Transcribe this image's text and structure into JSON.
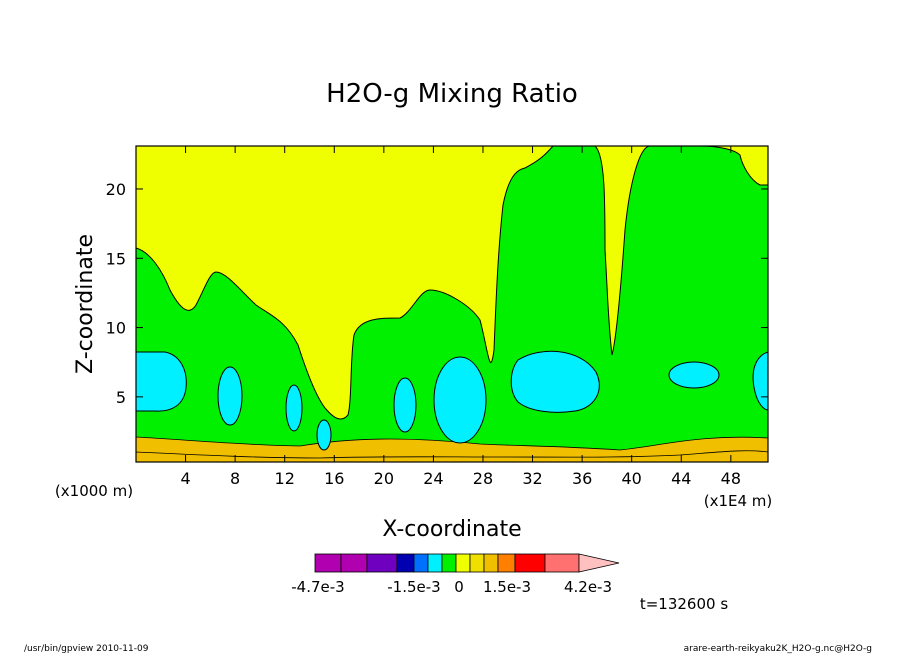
{
  "chart_data": {
    "type": "heatmap",
    "title": "H2O-g Mixing Ratio",
    "xlabel": "X-coordinate",
    "ylabel": "Z-coordinate",
    "x_scale_label": "(x1E4 m)",
    "y_scale_label": "(x1000 m)",
    "xlim": [
      0,
      51
    ],
    "ylim": [
      0.3,
      23.1
    ],
    "x_ticks": [
      4,
      8,
      12,
      16,
      20,
      24,
      28,
      32,
      36,
      40,
      44,
      48
    ],
    "y_ticks": [
      5,
      10,
      15,
      20
    ],
    "levels": [
      {
        "name": "bg",
        "color": "#f0ff00"
      },
      {
        "name": "green",
        "color": "#00f000"
      },
      {
        "name": "cyan",
        "color": "#00f0ff"
      },
      {
        "name": "gold",
        "color": "#f0c000"
      }
    ],
    "colorbar": {
      "colors": [
        "#b000b0",
        "#b000b0",
        "#7000c0",
        "#0000b0",
        "#0070ff",
        "#00f0ff",
        "#00f000",
        "#f0ff00",
        "#f0e000",
        "#f0c000",
        "#ff8000",
        "#ff0000",
        "#ff7070",
        "#ffc0c0"
      ],
      "labels": [
        "-4.7e-3",
        "-1.5e-3",
        "0",
        "1.5e-3",
        "4.2e-3"
      ]
    },
    "time_label": "t=132600 s"
  },
  "footer": {
    "left": "/usr/bin/gpview   2010-11-09",
    "right": "arare-earth-reikyaku2K_H2O-g.nc@H2O-g"
  }
}
